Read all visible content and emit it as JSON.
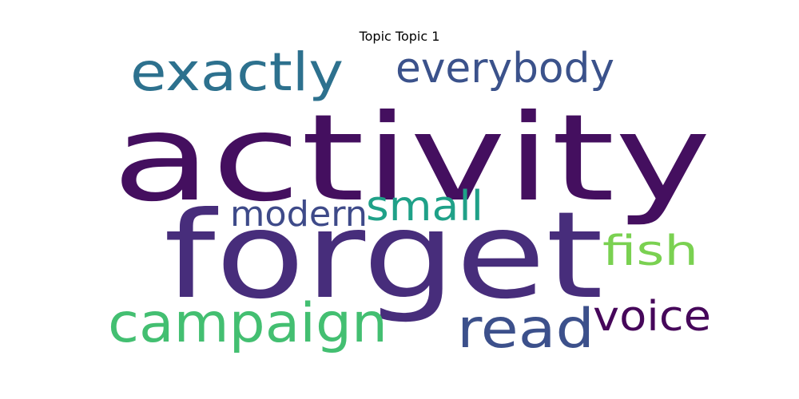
{
  "chart_data": {
    "type": "wordcloud",
    "title": "Topic Topic 1",
    "words": [
      {
        "text": "activity",
        "weight": 1.0,
        "color": "#440f5f"
      },
      {
        "text": "forget",
        "weight": 0.93,
        "color": "#472d7b"
      },
      {
        "text": "campaign",
        "weight": 0.46,
        "color": "#43bf71"
      },
      {
        "text": "read",
        "weight": 0.41,
        "color": "#3c508b"
      },
      {
        "text": "exactly",
        "weight": 0.39,
        "color": "#2d718e"
      },
      {
        "text": "everybody",
        "weight": 0.33,
        "color": "#3b528b"
      },
      {
        "text": "voice",
        "weight": 0.31,
        "color": "#46075a"
      },
      {
        "text": "fish",
        "weight": 0.3,
        "color": "#7ad151"
      },
      {
        "text": "small",
        "weight": 0.29,
        "color": "#1fa188"
      },
      {
        "text": "modern",
        "weight": 0.28,
        "color": "#3e4a89"
      }
    ]
  }
}
